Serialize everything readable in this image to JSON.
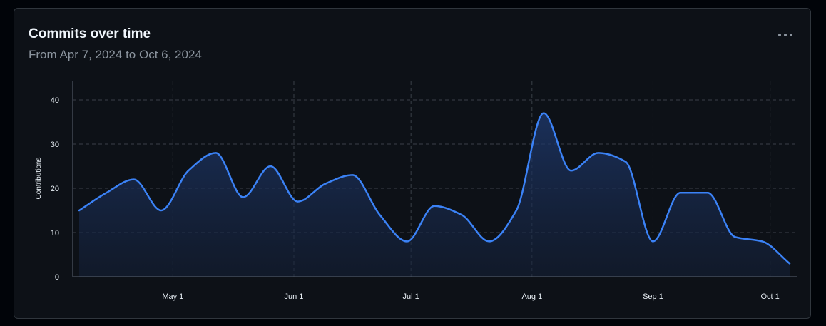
{
  "card": {
    "title": "Commits over time",
    "subtitle": "From Apr 7, 2024 to Oct 6, 2024",
    "menu_icon": "kebab-horizontal-icon"
  },
  "colors": {
    "line": "#3b82f6",
    "area": "#1d3461",
    "grid": "#3a4048",
    "axis": "#5b6470",
    "text": "#e6edf3",
    "muted": "#8b949e"
  },
  "chart_data": {
    "type": "area",
    "title": "Commits over time",
    "subtitle": "From Apr 7, 2024 to Oct 6, 2024",
    "xlabel": "",
    "ylabel": "Contributions",
    "xlim": [
      "2024-04-07",
      "2024-10-06"
    ],
    "ylim": [
      0,
      44
    ],
    "yticks": [
      0,
      10,
      20,
      30,
      40
    ],
    "xticks": [
      {
        "date": "2024-05-01",
        "label": "May 1"
      },
      {
        "date": "2024-06-01",
        "label": "Jun 1"
      },
      {
        "date": "2024-07-01",
        "label": "Jul 1"
      },
      {
        "date": "2024-08-01",
        "label": "Aug 1"
      },
      {
        "date": "2024-09-01",
        "label": "Sep 1"
      },
      {
        "date": "2024-10-01",
        "label": "Oct 1"
      }
    ],
    "grid": true,
    "points": [
      {
        "x": "2024-04-07",
        "y": 15
      },
      {
        "x": "2024-04-14",
        "y": 19
      },
      {
        "x": "2024-04-21",
        "y": 22
      },
      {
        "x": "2024-04-28",
        "y": 15
      },
      {
        "x": "2024-05-05",
        "y": 24
      },
      {
        "x": "2024-05-12",
        "y": 28
      },
      {
        "x": "2024-05-19",
        "y": 18
      },
      {
        "x": "2024-05-26",
        "y": 25
      },
      {
        "x": "2024-06-02",
        "y": 17
      },
      {
        "x": "2024-06-09",
        "y": 21
      },
      {
        "x": "2024-06-16",
        "y": 23
      },
      {
        "x": "2024-06-23",
        "y": 14
      },
      {
        "x": "2024-06-30",
        "y": 8
      },
      {
        "x": "2024-07-07",
        "y": 16
      },
      {
        "x": "2024-07-14",
        "y": 14
      },
      {
        "x": "2024-07-21",
        "y": 8
      },
      {
        "x": "2024-07-28",
        "y": 15
      },
      {
        "x": "2024-08-04",
        "y": 37
      },
      {
        "x": "2024-08-11",
        "y": 24
      },
      {
        "x": "2024-08-18",
        "y": 28
      },
      {
        "x": "2024-08-25",
        "y": 26
      },
      {
        "x": "2024-09-01",
        "y": 8
      },
      {
        "x": "2024-09-08",
        "y": 19
      },
      {
        "x": "2024-09-15",
        "y": 19
      },
      {
        "x": "2024-09-22",
        "y": 9
      },
      {
        "x": "2024-09-29",
        "y": 8
      },
      {
        "x": "2024-10-06",
        "y": 3
      }
    ]
  }
}
